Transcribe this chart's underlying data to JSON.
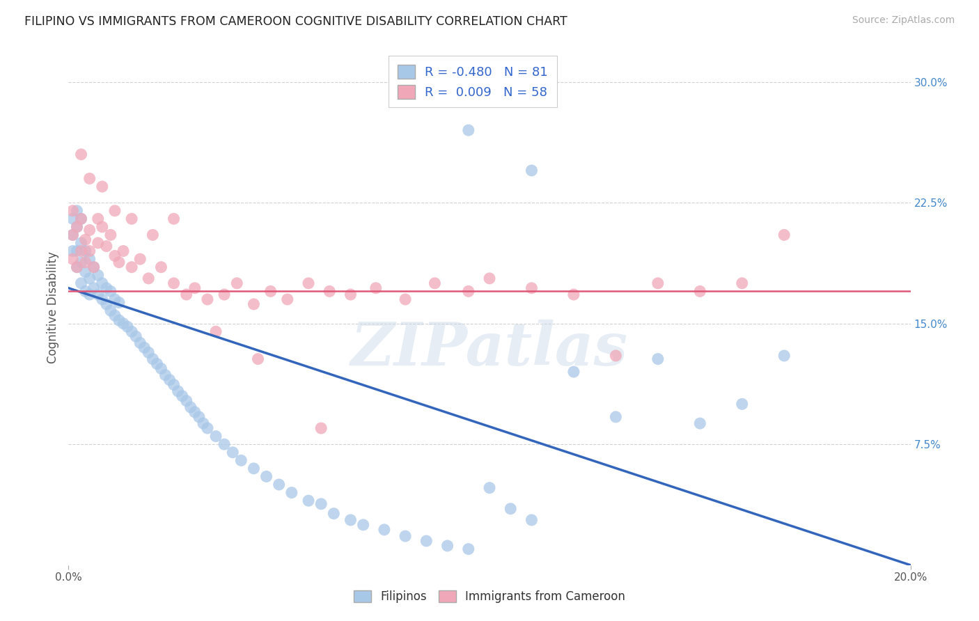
{
  "title": "FILIPINO VS IMMIGRANTS FROM CAMEROON COGNITIVE DISABILITY CORRELATION CHART",
  "source": "Source: ZipAtlas.com",
  "ylabel": "Cognitive Disability",
  "watermark": "ZIPatlas",
  "xlim": [
    0.0,
    0.2
  ],
  "ylim": [
    0.0,
    0.32
  ],
  "xtick_vals": [
    0.0,
    0.2
  ],
  "xtick_labels": [
    "0.0%",
    "20.0%"
  ],
  "ytick_labels_right": [
    "7.5%",
    "15.0%",
    "22.5%",
    "30.0%"
  ],
  "ytick_vals_right": [
    0.075,
    0.15,
    0.225,
    0.3
  ],
  "blue_R": "-0.480",
  "blue_N": "81",
  "pink_R": "0.009",
  "pink_N": "58",
  "blue_color": "#a8c8e8",
  "pink_color": "#f0a8b8",
  "blue_line_color": "#3366bb",
  "pink_line_color": "#e05878",
  "grid_color": "#cccccc",
  "background_color": "#ffffff",
  "blue_trend_y_start": 0.172,
  "blue_trend_y_end": 0.0,
  "pink_trend_y": 0.17,
  "blue_points_x": [
    0.001,
    0.001,
    0.001,
    0.002,
    0.002,
    0.002,
    0.002,
    0.003,
    0.003,
    0.003,
    0.003,
    0.004,
    0.004,
    0.004,
    0.005,
    0.005,
    0.005,
    0.006,
    0.006,
    0.007,
    0.007,
    0.008,
    0.008,
    0.009,
    0.009,
    0.01,
    0.01,
    0.011,
    0.011,
    0.012,
    0.012,
    0.013,
    0.014,
    0.015,
    0.016,
    0.017,
    0.018,
    0.019,
    0.02,
    0.021,
    0.022,
    0.023,
    0.024,
    0.025,
    0.026,
    0.027,
    0.028,
    0.029,
    0.03,
    0.031,
    0.032,
    0.033,
    0.035,
    0.037,
    0.039,
    0.041,
    0.044,
    0.047,
    0.05,
    0.053,
    0.057,
    0.06,
    0.063,
    0.067,
    0.07,
    0.075,
    0.08,
    0.085,
    0.09,
    0.095,
    0.1,
    0.105,
    0.11,
    0.12,
    0.13,
    0.14,
    0.15,
    0.095,
    0.11,
    0.16,
    0.17
  ],
  "blue_points_y": [
    0.195,
    0.205,
    0.215,
    0.185,
    0.195,
    0.21,
    0.22,
    0.175,
    0.188,
    0.2,
    0.215,
    0.17,
    0.182,
    0.195,
    0.168,
    0.178,
    0.19,
    0.172,
    0.185,
    0.168,
    0.18,
    0.165,
    0.175,
    0.162,
    0.172,
    0.158,
    0.17,
    0.155,
    0.165,
    0.152,
    0.163,
    0.15,
    0.148,
    0.145,
    0.142,
    0.138,
    0.135,
    0.132,
    0.128,
    0.125,
    0.122,
    0.118,
    0.115,
    0.112,
    0.108,
    0.105,
    0.102,
    0.098,
    0.095,
    0.092,
    0.088,
    0.085,
    0.08,
    0.075,
    0.07,
    0.065,
    0.06,
    0.055,
    0.05,
    0.045,
    0.04,
    0.038,
    0.032,
    0.028,
    0.025,
    0.022,
    0.018,
    0.015,
    0.012,
    0.01,
    0.048,
    0.035,
    0.028,
    0.12,
    0.092,
    0.128,
    0.088,
    0.27,
    0.245,
    0.1,
    0.13
  ],
  "pink_points_x": [
    0.001,
    0.001,
    0.001,
    0.002,
    0.002,
    0.003,
    0.003,
    0.004,
    0.004,
    0.005,
    0.005,
    0.006,
    0.007,
    0.007,
    0.008,
    0.009,
    0.01,
    0.011,
    0.012,
    0.013,
    0.015,
    0.017,
    0.019,
    0.022,
    0.025,
    0.028,
    0.03,
    0.033,
    0.037,
    0.04,
    0.044,
    0.048,
    0.052,
    0.057,
    0.062,
    0.067,
    0.073,
    0.08,
    0.087,
    0.095,
    0.1,
    0.11,
    0.12,
    0.13,
    0.14,
    0.15,
    0.16,
    0.17,
    0.003,
    0.005,
    0.008,
    0.011,
    0.015,
    0.02,
    0.025,
    0.035,
    0.045,
    0.06
  ],
  "pink_points_y": [
    0.19,
    0.205,
    0.22,
    0.185,
    0.21,
    0.195,
    0.215,
    0.188,
    0.202,
    0.195,
    0.208,
    0.185,
    0.215,
    0.2,
    0.21,
    0.198,
    0.205,
    0.192,
    0.188,
    0.195,
    0.185,
    0.19,
    0.178,
    0.185,
    0.175,
    0.168,
    0.172,
    0.165,
    0.168,
    0.175,
    0.162,
    0.17,
    0.165,
    0.175,
    0.17,
    0.168,
    0.172,
    0.165,
    0.175,
    0.17,
    0.178,
    0.172,
    0.168,
    0.13,
    0.175,
    0.17,
    0.175,
    0.205,
    0.255,
    0.24,
    0.235,
    0.22,
    0.215,
    0.205,
    0.215,
    0.145,
    0.128,
    0.085
  ]
}
